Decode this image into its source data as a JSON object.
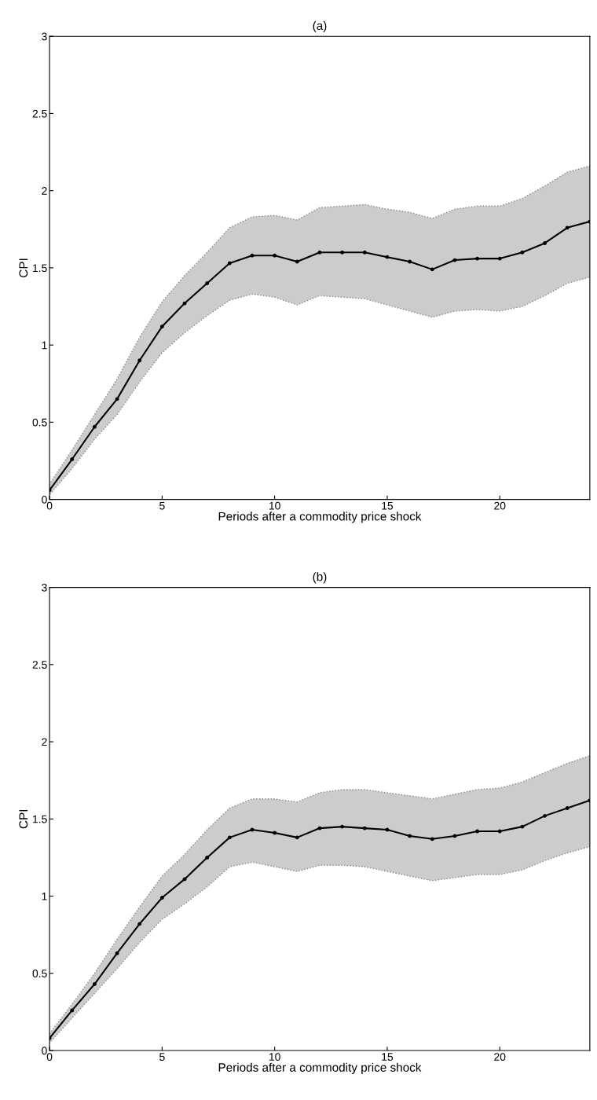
{
  "chart_data": [
    {
      "type": "line",
      "title": "(a)",
      "xlabel": "Periods after a commodity price shock",
      "ylabel": "CPI",
      "x": [
        0,
        1,
        2,
        3,
        4,
        5,
        6,
        7,
        8,
        9,
        10,
        11,
        12,
        13,
        14,
        15,
        16,
        17,
        18,
        19,
        20,
        21,
        22,
        23,
        24
      ],
      "xlim": [
        0,
        24
      ],
      "xticks": [
        0,
        5,
        10,
        15,
        20
      ],
      "ylim": [
        0,
        3
      ],
      "yticks": [
        0,
        0.5,
        1,
        1.5,
        2,
        2.5,
        3
      ],
      "marker": "circle",
      "line_style": "solid",
      "grid": false,
      "legend": false,
      "series": [
        {
          "color": "#000000",
          "values": [
            0.06,
            0.26,
            0.47,
            0.65,
            0.9,
            1.12,
            1.27,
            1.4,
            1.53,
            1.58,
            1.58,
            1.54,
            1.6,
            1.6,
            1.6,
            1.57,
            1.54,
            1.49,
            1.55,
            1.56,
            1.56,
            1.6,
            1.66,
            1.76,
            1.8
          ],
          "upper": [
            0.1,
            0.32,
            0.55,
            0.78,
            1.05,
            1.28,
            1.45,
            1.6,
            1.76,
            1.83,
            1.84,
            1.81,
            1.89,
            1.9,
            1.91,
            1.88,
            1.86,
            1.82,
            1.88,
            1.9,
            1.9,
            1.95,
            2.03,
            2.12,
            2.16
          ],
          "lower": [
            0.03,
            0.2,
            0.39,
            0.55,
            0.76,
            0.95,
            1.08,
            1.19,
            1.29,
            1.33,
            1.31,
            1.26,
            1.32,
            1.31,
            1.3,
            1.26,
            1.22,
            1.18,
            1.22,
            1.23,
            1.22,
            1.25,
            1.32,
            1.4,
            1.44
          ]
        }
      ]
    },
    {
      "type": "line",
      "title": "(b)",
      "xlabel": "Periods after a commodity price shock",
      "ylabel": "CPI",
      "x": [
        0,
        1,
        2,
        3,
        4,
        5,
        6,
        7,
        8,
        9,
        10,
        11,
        12,
        13,
        14,
        15,
        16,
        17,
        18,
        19,
        20,
        21,
        22,
        23,
        24
      ],
      "xlim": [
        0,
        24
      ],
      "xticks": [
        0,
        5,
        10,
        15,
        20
      ],
      "ylim": [
        0,
        3
      ],
      "yticks": [
        0,
        0.5,
        1,
        1.5,
        2,
        2.5,
        3
      ],
      "marker": "circle",
      "line_style": "solid",
      "grid": false,
      "legend": false,
      "series": [
        {
          "color": "#000000",
          "values": [
            0.08,
            0.26,
            0.43,
            0.63,
            0.82,
            0.99,
            1.11,
            1.25,
            1.38,
            1.43,
            1.41,
            1.38,
            1.44,
            1.45,
            1.44,
            1.43,
            1.39,
            1.37,
            1.39,
            1.42,
            1.42,
            1.45,
            1.52,
            1.57,
            1.62
          ],
          "upper": [
            0.11,
            0.3,
            0.5,
            0.72,
            0.93,
            1.13,
            1.27,
            1.43,
            1.57,
            1.63,
            1.63,
            1.61,
            1.67,
            1.69,
            1.69,
            1.67,
            1.65,
            1.63,
            1.66,
            1.69,
            1.7,
            1.74,
            1.8,
            1.86,
            1.91
          ],
          "lower": [
            0.05,
            0.21,
            0.37,
            0.53,
            0.7,
            0.85,
            0.95,
            1.06,
            1.19,
            1.22,
            1.19,
            1.16,
            1.2,
            1.2,
            1.19,
            1.16,
            1.13,
            1.1,
            1.12,
            1.14,
            1.14,
            1.17,
            1.23,
            1.28,
            1.32
          ]
        }
      ]
    }
  ]
}
